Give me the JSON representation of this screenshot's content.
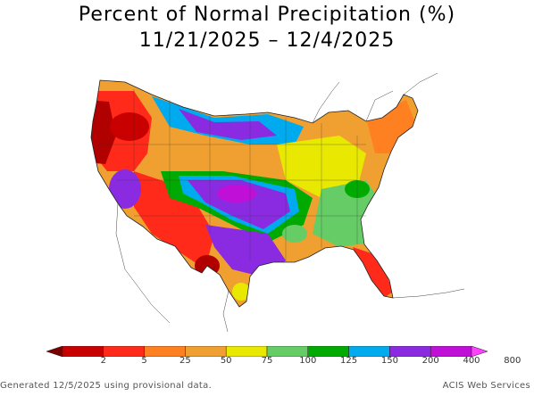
{
  "header": {
    "title_line1": "Percent of Normal Precipitation (%)",
    "title_line2": "11/21/2025 – 12/4/2025"
  },
  "legend": {
    "labels": [
      "2",
      "5",
      "25",
      "50",
      "75",
      "100",
      "125",
      "150",
      "200",
      "400",
      "800"
    ],
    "colors": [
      "#7a0000",
      "#c80000",
      "#ff2a1a",
      "#ff8020",
      "#f0a030",
      "#e8e800",
      "#66cc66",
      "#00aa00",
      "#00aaee",
      "#8a2be2",
      "#c010d8",
      "#ff40ff"
    ]
  },
  "footer": {
    "generated": "Generated 12/5/2025 using provisional data.",
    "credit": "ACIS Web Services"
  },
  "map": {
    "region": "Contiguous United States",
    "colors": {
      "dry_extreme": "#b00000",
      "dry": "#ff2a1a",
      "below": "#ff8020",
      "near": "#e8e800",
      "above": "#66cc66",
      "wet": "#00aaee",
      "very_wet": "#8a2be2",
      "extreme_wet": "#c010d8"
    }
  }
}
